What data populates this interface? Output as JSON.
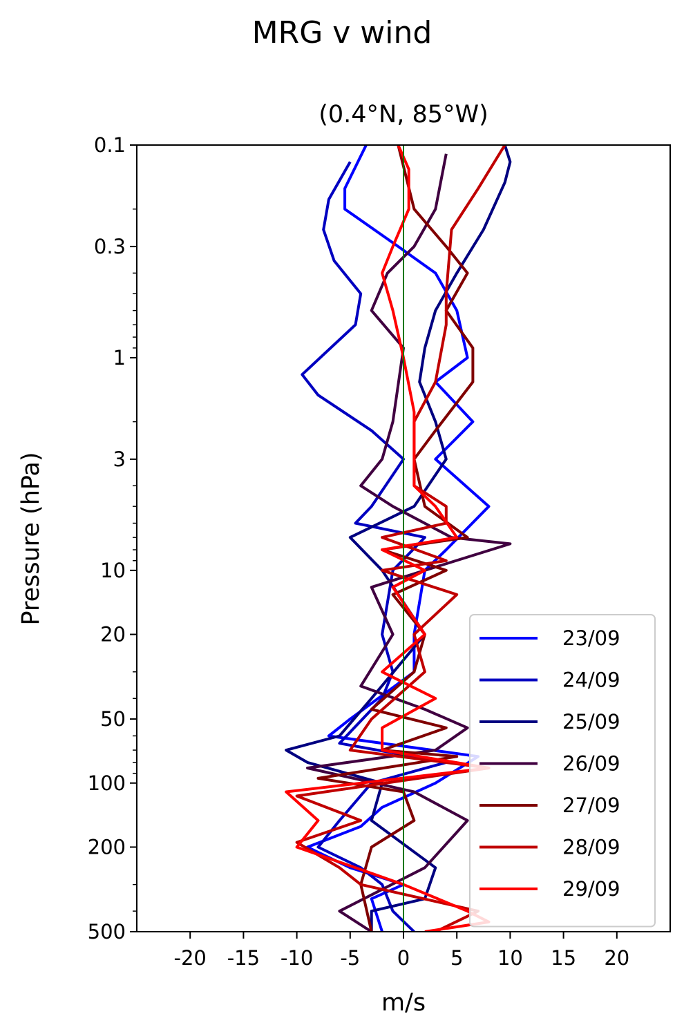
{
  "chart_data": {
    "type": "line",
    "title": "MRG v wind",
    "subtitle": "(0.4°N, 85°W)",
    "xlabel": "m/s",
    "ylabel": "Pressure (hPa)",
    "xlim": [
      -25,
      25
    ],
    "ylim": [
      500,
      0.1
    ],
    "y_scale": "log",
    "x_ticks": [
      -20,
      -15,
      -10,
      -5,
      0,
      5,
      10,
      15,
      20
    ],
    "x_tick_labels": [
      "-20",
      "-15",
      "-10",
      "-5",
      "0",
      "5",
      "10",
      "15",
      "20"
    ],
    "y_ticks": [
      0.1,
      0.3,
      1,
      3,
      10,
      20,
      50,
      100,
      200,
      500
    ],
    "y_tick_labels": [
      "0.1",
      "0.3",
      "1",
      "3",
      "10",
      "20",
      "50",
      "100",
      "200",
      "500"
    ],
    "grid": false,
    "legend_position": "lower-right",
    "reference_line": {
      "x": 0,
      "color": "#007700"
    },
    "series": [
      {
        "name": "23/09",
        "color": "#0000ff",
        "points": [
          [
            -3.5,
            0.1
          ],
          [
            -5.5,
            0.16
          ],
          [
            -5.5,
            0.2
          ],
          [
            -0.5,
            0.3
          ],
          [
            3,
            0.4
          ],
          [
            5,
            0.6
          ],
          [
            6,
            1
          ],
          [
            3,
            1.3
          ],
          [
            6.5,
            2
          ],
          [
            3,
            3
          ],
          [
            8,
            5
          ],
          [
            4,
            8
          ],
          [
            2,
            10
          ],
          [
            1,
            20
          ],
          [
            1,
            30
          ],
          [
            -5,
            50
          ],
          [
            -7,
            60
          ],
          [
            7,
            75
          ],
          [
            3,
            100
          ],
          [
            -2,
            130
          ],
          [
            -4,
            160
          ],
          [
            -9,
            200
          ],
          [
            -5,
            250
          ],
          [
            0,
            300
          ],
          [
            -3,
            350
          ],
          [
            -2,
            500
          ]
        ]
      },
      {
        "name": "24/09",
        "color": "#0000c0",
        "points": [
          [
            -5,
            0.12
          ],
          [
            -7,
            0.18
          ],
          [
            -7.5,
            0.25
          ],
          [
            -6.5,
            0.35
          ],
          [
            -4,
            0.5
          ],
          [
            -4.5,
            0.7
          ],
          [
            -9.5,
            1.2
          ],
          [
            -8,
            1.5
          ],
          [
            -3,
            2.2
          ],
          [
            0,
            3
          ],
          [
            -3,
            5
          ],
          [
            -4.5,
            6
          ],
          [
            2,
            7
          ],
          [
            -1,
            10
          ],
          [
            -2,
            20
          ],
          [
            -1,
            30
          ],
          [
            -2,
            40
          ],
          [
            -6,
            65
          ],
          [
            4,
            80
          ],
          [
            -3,
            100
          ],
          [
            -6,
            150
          ],
          [
            -8,
            200
          ],
          [
            -4,
            250
          ],
          [
            -2,
            300
          ],
          [
            -1,
            400
          ],
          [
            1,
            500
          ]
        ]
      },
      {
        "name": "25/09",
        "color": "#000080",
        "points": [
          [
            9.5,
            0.1
          ],
          [
            10,
            0.12
          ],
          [
            9.5,
            0.15
          ],
          [
            7.5,
            0.25
          ],
          [
            5,
            0.4
          ],
          [
            3,
            0.6
          ],
          [
            2,
            0.9
          ],
          [
            1.5,
            1.3
          ],
          [
            3,
            2
          ],
          [
            4,
            3
          ],
          [
            1,
            5
          ],
          [
            -5,
            7
          ],
          [
            -2,
            10
          ],
          [
            2,
            20
          ],
          [
            -3,
            40
          ],
          [
            -6,
            60
          ],
          [
            -11,
            70
          ],
          [
            -9,
            80
          ],
          [
            -2,
            100
          ],
          [
            -3,
            150
          ],
          [
            3,
            250
          ],
          [
            2,
            350
          ],
          [
            -3,
            400
          ],
          [
            -3,
            500
          ]
        ]
      },
      {
        "name": "26/09",
        "color": "#400040",
        "points": [
          [
            4,
            0.11
          ],
          [
            3,
            0.2
          ],
          [
            1,
            0.3
          ],
          [
            -1.5,
            0.4
          ],
          [
            -3,
            0.6
          ],
          [
            0,
            0.9
          ],
          [
            -1,
            2
          ],
          [
            -2,
            3
          ],
          [
            -4,
            4
          ],
          [
            -1,
            5
          ],
          [
            4.5,
            7
          ],
          [
            10,
            7.5
          ],
          [
            2,
            10
          ],
          [
            -3,
            12
          ],
          [
            -1,
            20
          ],
          [
            -4,
            35
          ],
          [
            2,
            45
          ],
          [
            6,
            55
          ],
          [
            3,
            70
          ],
          [
            -9,
            85
          ],
          [
            1,
            110
          ],
          [
            6,
            150
          ],
          [
            2,
            250
          ],
          [
            -6,
            400
          ],
          [
            -3,
            500
          ]
        ]
      },
      {
        "name": "27/09",
        "color": "#800000",
        "points": [
          [
            -0.5,
            0.1
          ],
          [
            1,
            0.2
          ],
          [
            4,
            0.3
          ],
          [
            6,
            0.4
          ],
          [
            4,
            0.6
          ],
          [
            6.5,
            0.9
          ],
          [
            6.5,
            1.3
          ],
          [
            3,
            2.2
          ],
          [
            1,
            3
          ],
          [
            2,
            5
          ],
          [
            6,
            7
          ],
          [
            -2,
            8
          ],
          [
            4,
            10
          ],
          [
            -1,
            13
          ],
          [
            2,
            20
          ],
          [
            1,
            30
          ],
          [
            -3,
            45
          ],
          [
            4,
            55
          ],
          [
            -2,
            70
          ],
          [
            5,
            75
          ],
          [
            -8,
            95
          ],
          [
            0,
            110
          ],
          [
            1,
            150
          ],
          [
            -3,
            200
          ],
          [
            -4,
            300
          ],
          [
            -3,
            500
          ]
        ]
      },
      {
        "name": "28/09",
        "color": "#c00000",
        "points": [
          [
            9.5,
            0.1
          ],
          [
            7,
            0.16
          ],
          [
            4.5,
            0.25
          ],
          [
            4,
            0.5
          ],
          [
            4,
            0.7
          ],
          [
            3,
            1.3
          ],
          [
            1,
            2
          ],
          [
            1,
            4
          ],
          [
            4,
            5
          ],
          [
            4,
            6
          ],
          [
            -2,
            7
          ],
          [
            4,
            9
          ],
          [
            -2,
            10
          ],
          [
            5,
            13
          ],
          [
            1,
            20
          ],
          [
            2,
            30
          ],
          [
            -3,
            50
          ],
          [
            -5,
            70
          ],
          [
            8,
            85
          ],
          [
            -10,
            115
          ],
          [
            -4,
            150
          ],
          [
            -10,
            190
          ],
          [
            -6,
            250
          ],
          [
            -4,
            300
          ],
          [
            7,
            400
          ],
          [
            3,
            500
          ]
        ]
      },
      {
        "name": "29/09",
        "color": "#ff0000",
        "points": [
          [
            -0.5,
            0.1
          ],
          [
            0.5,
            0.13
          ],
          [
            0.5,
            0.2
          ],
          [
            -1,
            0.3
          ],
          [
            -2,
            0.4
          ],
          [
            -1,
            0.6
          ],
          [
            0,
            1
          ],
          [
            1,
            1.8
          ],
          [
            1,
            2.5
          ],
          [
            1,
            4
          ],
          [
            3,
            5
          ],
          [
            5,
            7
          ],
          [
            -2,
            8
          ],
          [
            2,
            10
          ],
          [
            -1,
            12
          ],
          [
            2,
            20
          ],
          [
            -2,
            30
          ],
          [
            3,
            40
          ],
          [
            -2,
            55
          ],
          [
            -2,
            70
          ],
          [
            8,
            85
          ],
          [
            -11,
            110
          ],
          [
            -8,
            150
          ],
          [
            -10,
            200
          ],
          [
            0,
            300
          ],
          [
            6,
            400
          ],
          [
            8,
            450
          ],
          [
            2,
            500
          ]
        ]
      }
    ]
  }
}
